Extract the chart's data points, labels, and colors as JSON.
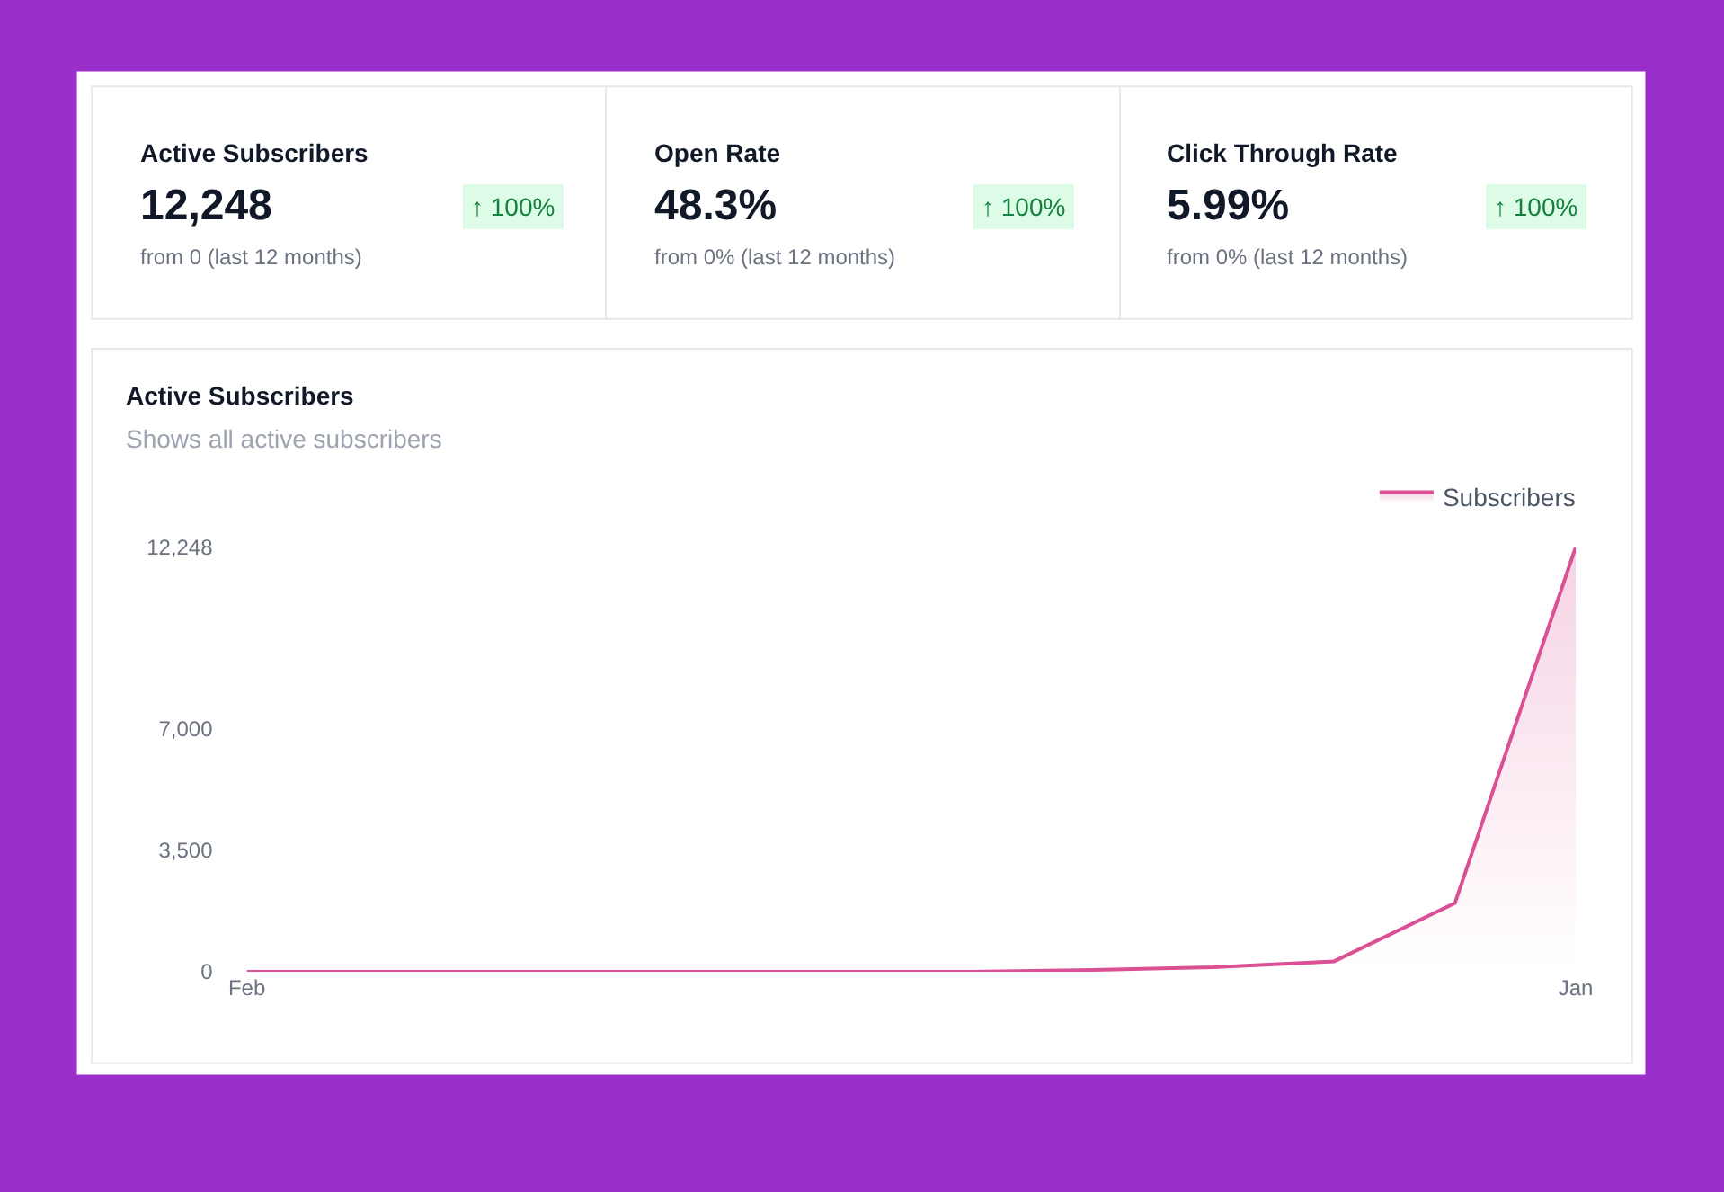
{
  "chart_data": [
    {
      "type": "other",
      "title": "Active Subscribers",
      "annotations": [
        "12,248",
        "↑ 100%",
        "from 0 (last 12 months)"
      ]
    },
    {
      "type": "other",
      "title": "Open Rate",
      "annotations": [
        "48.3%",
        "↑ 100%",
        "from 0% (last 12 months)"
      ]
    },
    {
      "type": "other",
      "title": "Click Through Rate",
      "annotations": [
        "5.99%",
        "↑ 100%",
        "from 0% (last 12 months)"
      ]
    },
    {
      "type": "area",
      "title": "Active Subscribers",
      "subtitle": "Shows all active subscribers",
      "categories": [
        "Feb",
        null,
        null,
        null,
        null,
        null,
        null,
        null,
        null,
        null,
        null,
        "Jan"
      ],
      "series": [
        {
          "name": "Subscribers",
          "color": "#db4f94",
          "values": [
            0,
            0,
            0,
            0,
            0,
            0,
            0,
            50,
            130,
            300,
            1980,
            12248
          ]
        }
      ],
      "ylim": [
        0,
        12248
      ],
      "yticks": [
        0,
        {
          "value": 3500,
          "label": "3,500"
        },
        {
          "value": 7000,
          "label": "7,000"
        },
        {
          "value": 12248,
          "label": "12,248"
        }
      ],
      "legend": "top right"
    }
  ]
}
